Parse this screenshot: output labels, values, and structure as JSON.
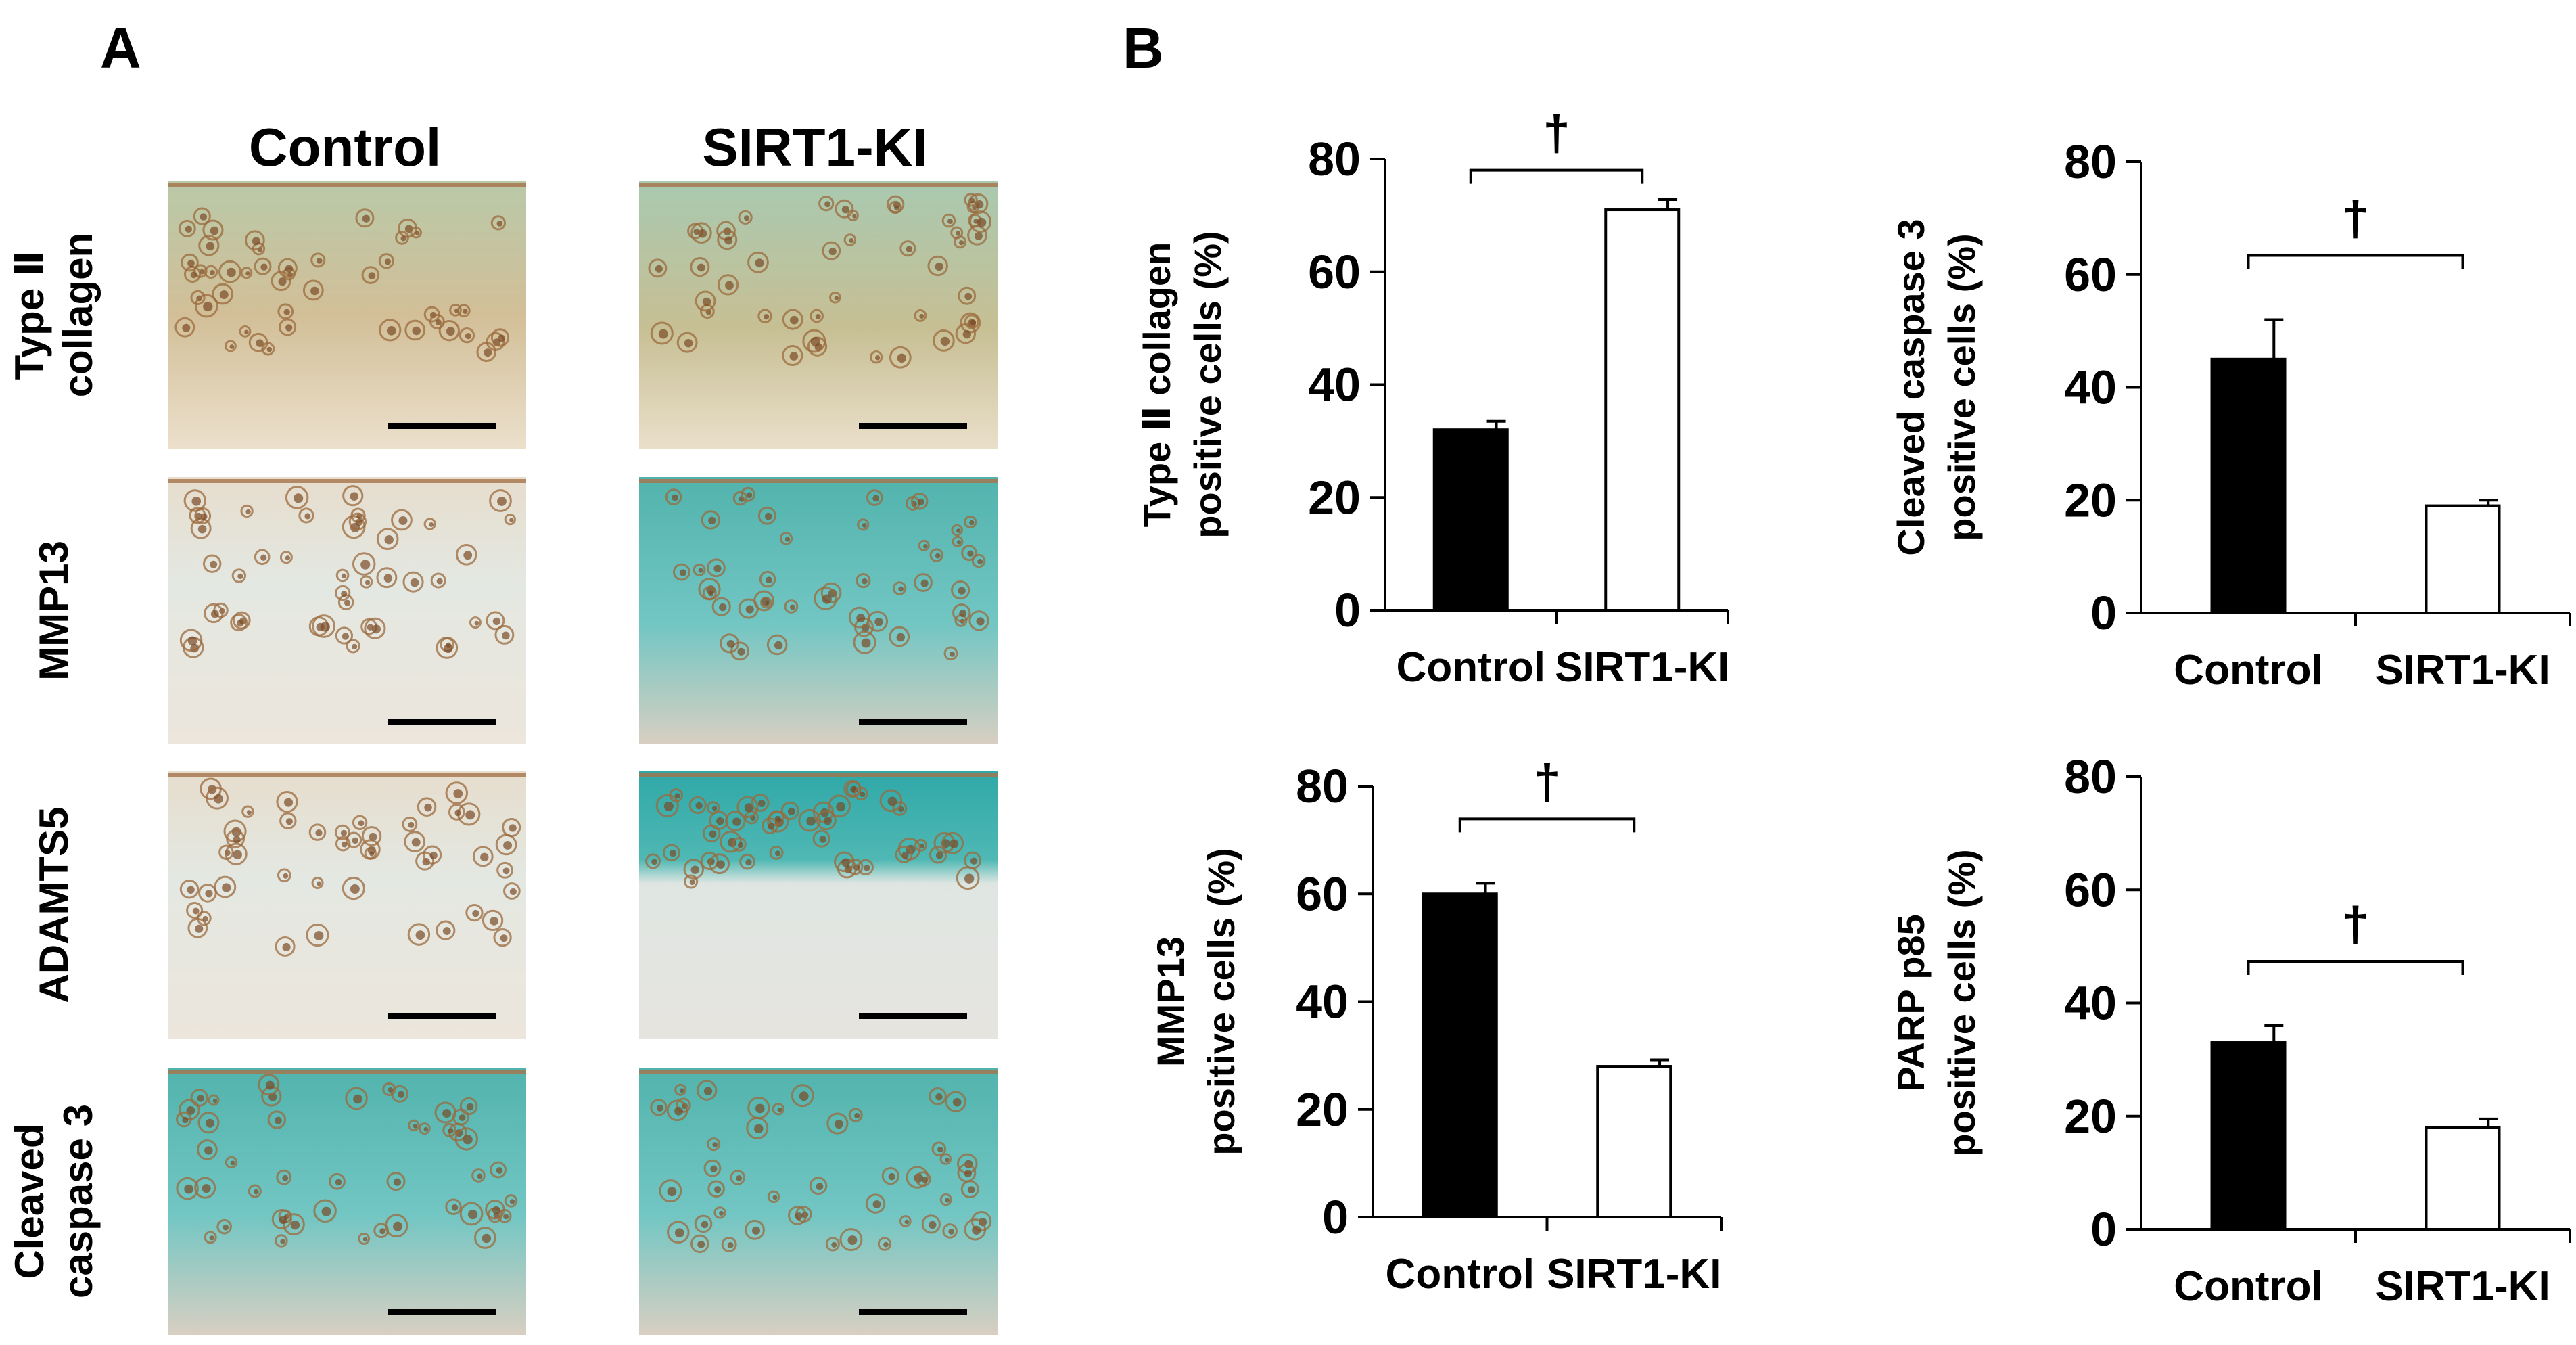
{
  "panels": {
    "a_label": "A",
    "b_label": "B"
  },
  "micrographs": {
    "columns": [
      "Control",
      "SIRT1-KI"
    ],
    "rows": [
      {
        "label_lines": [
          "Type Ⅱ",
          "collagen"
        ],
        "tiles": [
          "brown",
          "brown-green"
        ]
      },
      {
        "label_lines": [
          "MMP13"
        ],
        "tiles": [
          "light",
          "teal"
        ]
      },
      {
        "label_lines": [
          "ADAMTS5"
        ],
        "tiles": [
          "light",
          "teal-band"
        ]
      },
      {
        "label_lines": [
          "Cleaved",
          "caspase 3"
        ],
        "tiles": [
          "teal",
          "teal"
        ]
      }
    ],
    "colors": {
      "brown": "#cbb690",
      "brown-green": "#c6c398",
      "light": "#ece6db",
      "teal": "#66c0bd",
      "teal-band": "#e2e6e0",
      "scale_bar": "#000000"
    }
  },
  "chart_data": [
    {
      "type": "bar",
      "categories": [
        "Control",
        "SIRT1-KI"
      ],
      "values": [
        32,
        71
      ],
      "errors": [
        1.5,
        1.8
      ],
      "ylabel_lines": [
        "Type Ⅱ collagen",
        "positive cells (%)"
      ],
      "ylim": [
        0,
        80
      ],
      "yticks": [
        0,
        20,
        40,
        60,
        80
      ],
      "bar_colors": [
        "#000000",
        "#ffffff"
      ],
      "significance": "†"
    },
    {
      "type": "bar",
      "categories": [
        "Control",
        "SIRT1-KI"
      ],
      "values": [
        45,
        19
      ],
      "errors": [
        7,
        1
      ],
      "ylabel_lines": [
        "Cleaved caspase 3",
        "positive cells (%)"
      ],
      "ylim": [
        0,
        80
      ],
      "yticks": [
        0,
        20,
        40,
        60,
        80
      ],
      "bar_colors": [
        "#000000",
        "#ffffff"
      ],
      "significance": "†"
    },
    {
      "type": "bar",
      "categories": [
        "Control",
        "SIRT1-KI"
      ],
      "values": [
        60,
        28
      ],
      "errors": [
        2,
        1.2
      ],
      "ylabel_lines": [
        "MMP13",
        "positive cells (%)"
      ],
      "ylim": [
        0,
        80
      ],
      "yticks": [
        0,
        20,
        40,
        60,
        80
      ],
      "bar_colors": [
        "#000000",
        "#ffffff"
      ],
      "significance": "†"
    },
    {
      "type": "bar",
      "categories": [
        "Control",
        "SIRT1-KI"
      ],
      "values": [
        33,
        18
      ],
      "errors": [
        3,
        1.5
      ],
      "ylabel_lines": [
        "PARP p85",
        "positive cells (%)"
      ],
      "ylim": [
        0,
        80
      ],
      "yticks": [
        0,
        20,
        40,
        60,
        80
      ],
      "bar_colors": [
        "#000000",
        "#ffffff"
      ],
      "significance": "†"
    }
  ]
}
